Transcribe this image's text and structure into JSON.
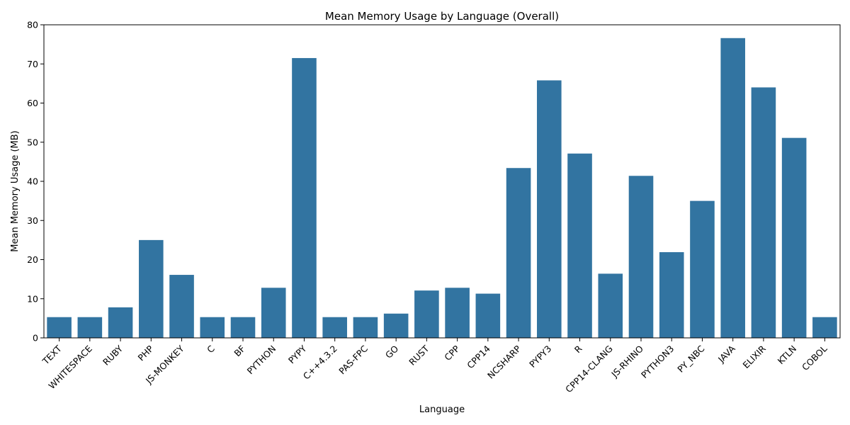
{
  "chart_data": {
    "type": "bar",
    "title": "Mean Memory Usage by Language (Overall)",
    "xlabel": "Language",
    "ylabel": "Mean Memory Usage (MB)",
    "ylim": [
      0,
      80
    ],
    "yticks": [
      0,
      10,
      20,
      30,
      40,
      50,
      60,
      70,
      80
    ],
    "grid": false,
    "bar_color": "#3274a1",
    "categories": [
      "TEXT",
      "WHITESPACE",
      "RUBY",
      "PHP",
      "JS-MONKEY",
      "C",
      "BF",
      "PYTHON",
      "PYPY",
      "C++4.3.2",
      "PAS-FPC",
      "GO",
      "RUST",
      "CPP",
      "CPP14",
      "NCSHARP",
      "PYPY3",
      "R",
      "CPP14-CLANG",
      "JS-RHINO",
      "PYTHON3",
      "PY_NBC",
      "JAVA",
      "ELIXIR",
      "KTLN",
      "COBOL"
    ],
    "values": [
      5.3,
      5.3,
      7.8,
      25.0,
      16.1,
      5.3,
      5.3,
      12.8,
      71.5,
      5.3,
      5.3,
      6.2,
      12.1,
      12.8,
      11.3,
      43.4,
      65.8,
      47.1,
      16.4,
      41.4,
      21.9,
      35.0,
      76.6,
      64.0,
      51.1,
      5.3
    ]
  }
}
